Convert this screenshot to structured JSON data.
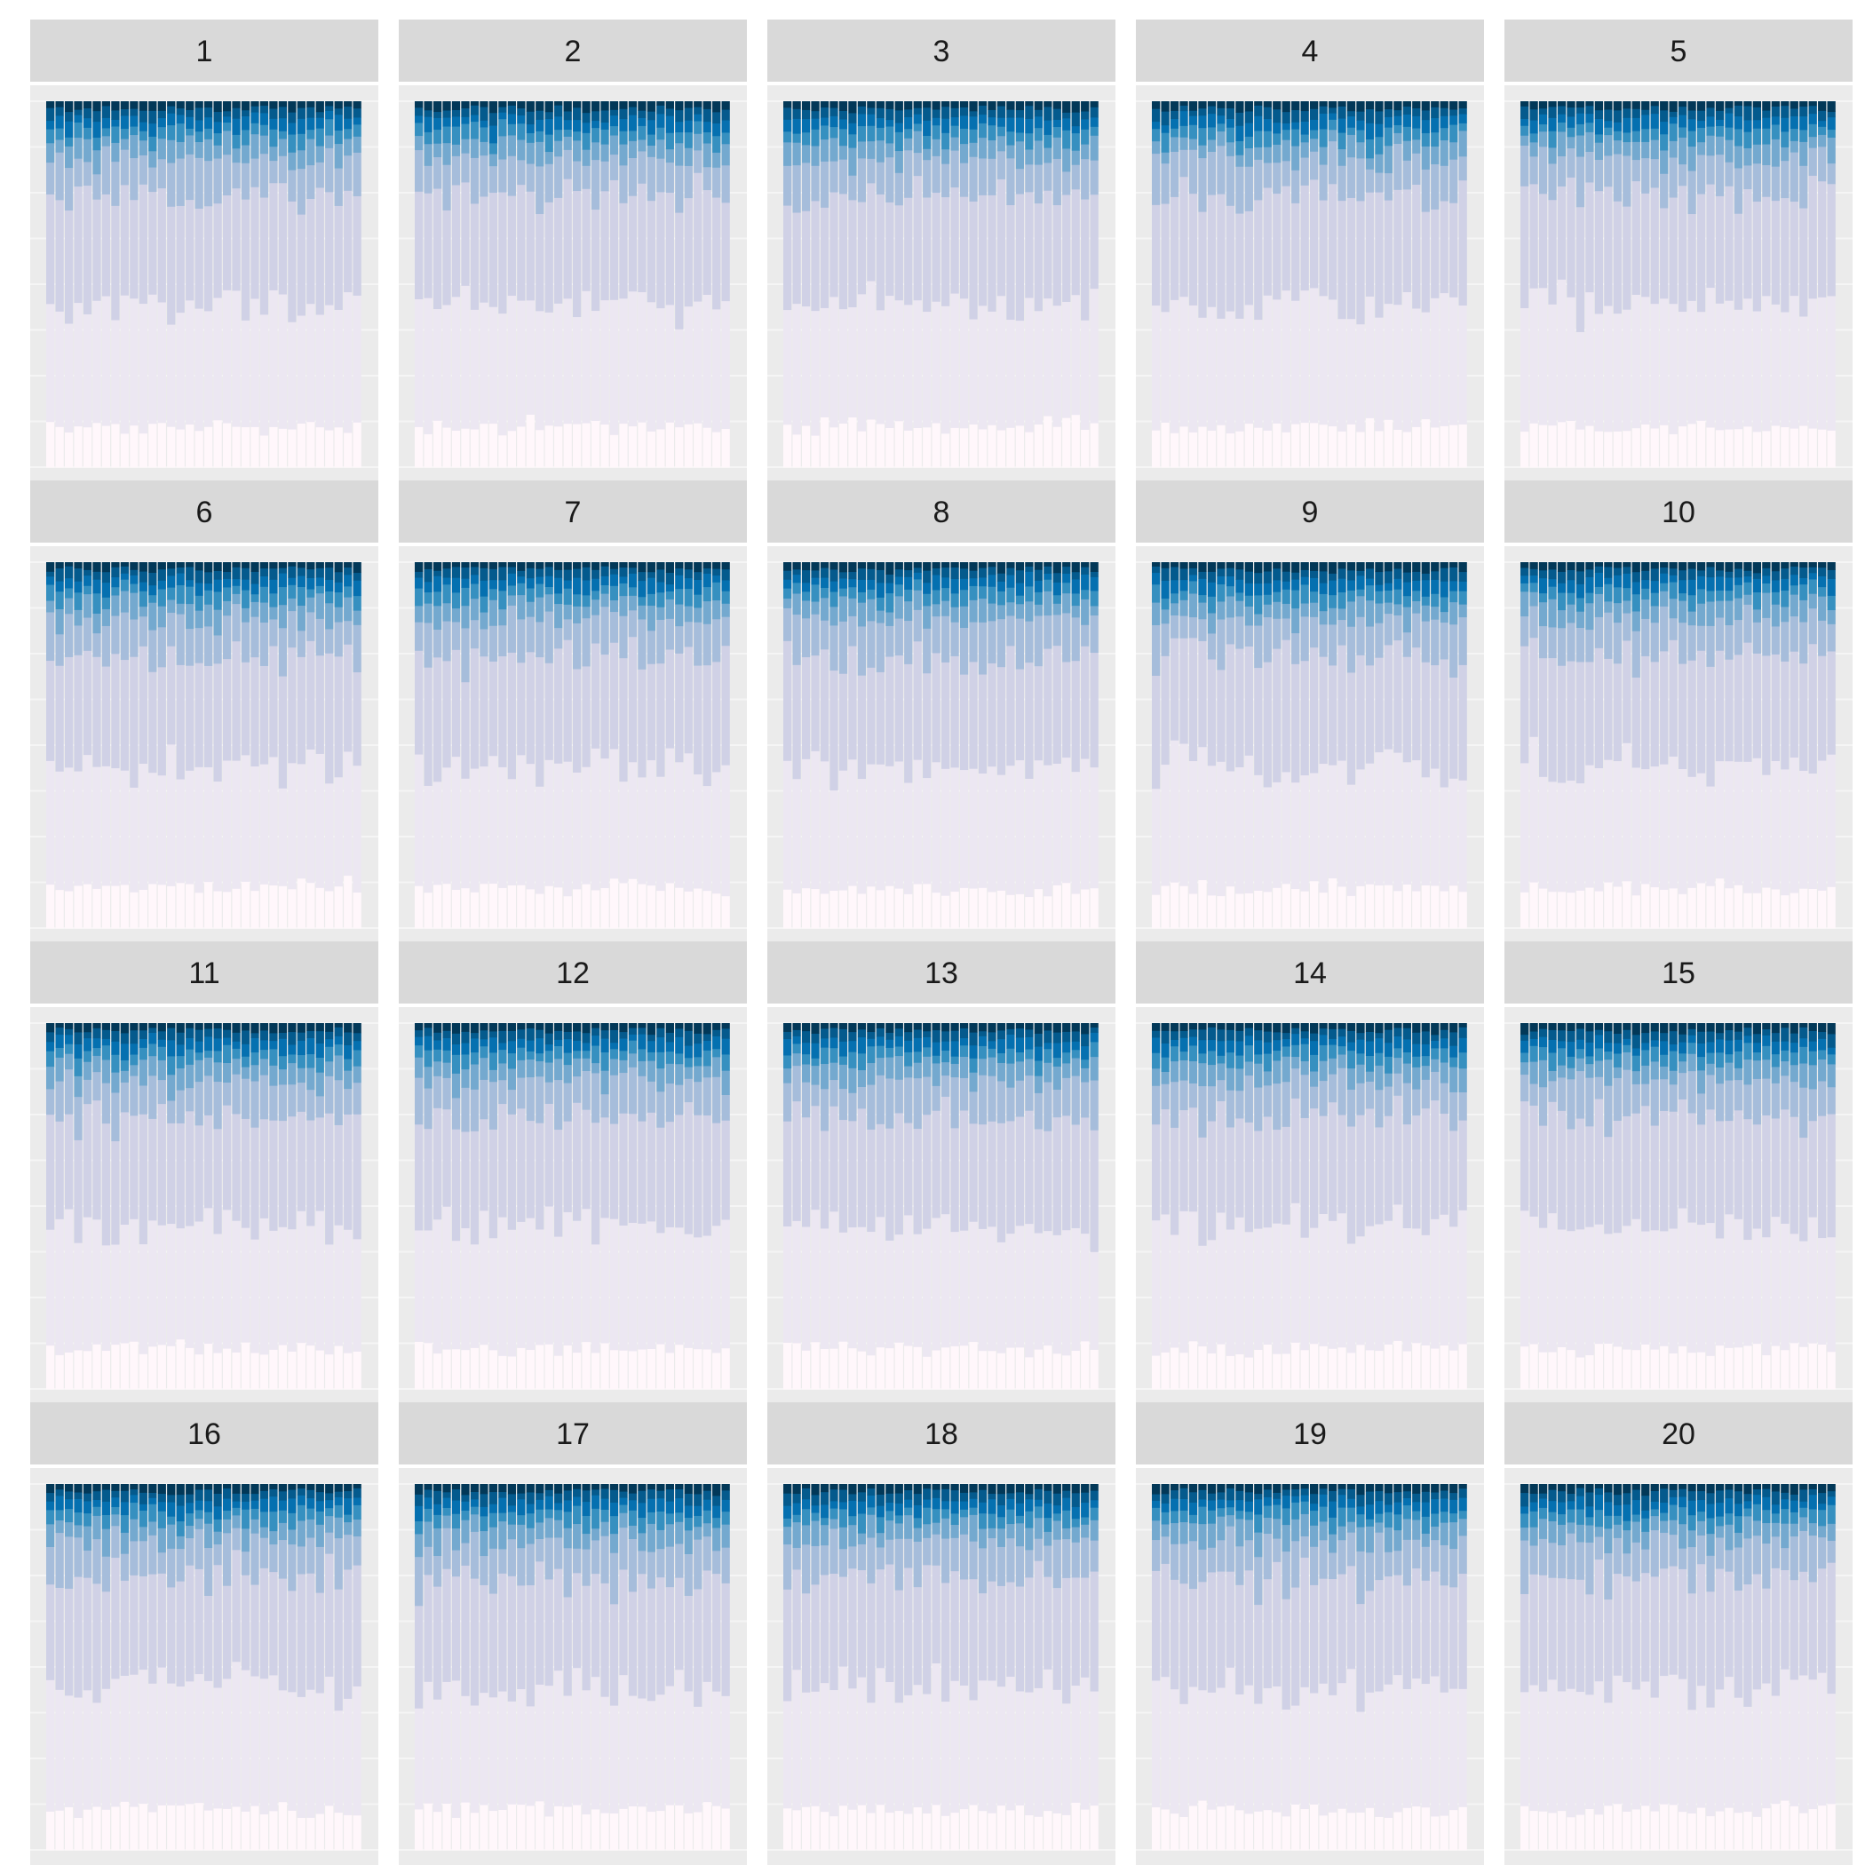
{
  "chart_data": {
    "type": "bar",
    "stacked": true,
    "layout": "faceted grid, 4 rows x 5 columns",
    "facets": [
      "1",
      "2",
      "3",
      "4",
      "5",
      "6",
      "7",
      "8",
      "9",
      "10",
      "11",
      "12",
      "13",
      "14",
      "15",
      "16",
      "17",
      "18",
      "19",
      "20"
    ],
    "bars_per_facet": 34,
    "axis_labels_visible": false,
    "grid": true,
    "legend": "none",
    "ylim": [
      0,
      1
    ],
    "layer_colors": [
      "#fff7fb",
      "#ece7f2",
      "#d0d1e6",
      "#a6bddb",
      "#74a9cf",
      "#3690c0",
      "#0570b0",
      "#045a8d",
      "#023858"
    ],
    "mean_layer_fractions": [
      0.11,
      0.33,
      0.3,
      0.1,
      0.05,
      0.035,
      0.03,
      0.025,
      0.02
    ],
    "panel_background": "#ebebeb",
    "strip_background": "#d9d9d9"
  }
}
